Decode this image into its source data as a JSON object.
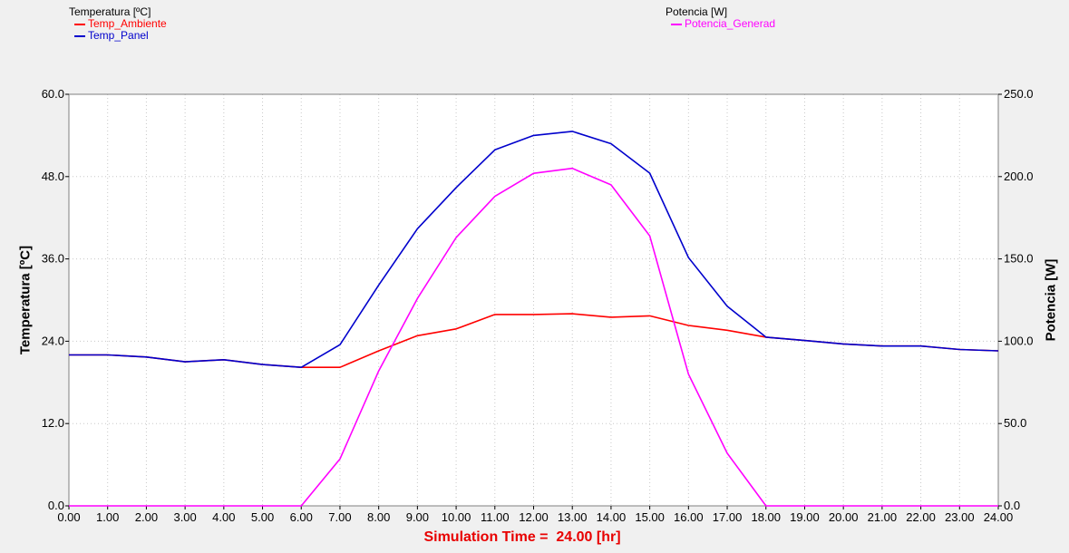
{
  "legends": {
    "left": {
      "title": "Temperatura [ºC]",
      "entries": [
        {
          "label": "Temp_Ambiente",
          "color": "#ff0000"
        },
        {
          "label": "Temp_Panel",
          "color": "#0000cc"
        }
      ]
    },
    "right": {
      "title": "Potencia [W]",
      "entries": [
        {
          "label": "Potencia_Generad",
          "color": "#ff00ff"
        }
      ]
    }
  },
  "chart_data": {
    "type": "line",
    "xlabel": "Simulation Time =  24.00 [hr]",
    "ylabel_left": "Temperatura [ºC]",
    "ylabel_right": "Potencia [W]",
    "xlim": [
      0,
      24
    ],
    "ylim_left": [
      0,
      60
    ],
    "ylim_right": [
      0,
      250
    ],
    "x_ticks": [
      "0.00",
      "1.00",
      "2.00",
      "3.00",
      "4.00",
      "5.00",
      "6.00",
      "7.00",
      "8.00",
      "9.00",
      "10.00",
      "11.00",
      "12.00",
      "13.00",
      "14.00",
      "15.00",
      "16.00",
      "17.00",
      "18.00",
      "19.00",
      "20.00",
      "21.00",
      "22.00",
      "23.00",
      "24.00"
    ],
    "y_ticks_left": [
      "0.0",
      "12.0",
      "24.0",
      "36.0",
      "48.0",
      "60.0"
    ],
    "y_ticks_right": [
      "0.0",
      "50.0",
      "100.0",
      "150.0",
      "200.0",
      "250.0"
    ],
    "grid": true,
    "series": [
      {
        "name": "Temp_Ambiente",
        "axis": "left",
        "color": "#ff0000",
        "x": [
          0,
          1,
          2,
          3,
          4,
          5,
          6,
          7,
          8,
          9,
          10,
          11,
          12,
          13,
          14,
          15,
          16,
          17,
          18,
          19,
          20,
          21,
          22,
          23,
          24
        ],
        "y": [
          22.0,
          22.0,
          21.7,
          21.0,
          21.3,
          20.6,
          20.2,
          20.2,
          22.6,
          24.8,
          25.8,
          27.9,
          27.9,
          28.0,
          27.5,
          27.7,
          26.3,
          25.6,
          24.6,
          24.1,
          23.6,
          23.3,
          23.3,
          22.8,
          22.6
        ]
      },
      {
        "name": "Temp_Panel",
        "axis": "left",
        "color": "#0000cc",
        "x": [
          0,
          1,
          2,
          3,
          4,
          5,
          6,
          7,
          8,
          9,
          10,
          11,
          12,
          13,
          14,
          15,
          16,
          17,
          18,
          19,
          20,
          21,
          22,
          23,
          24
        ],
        "y": [
          22.0,
          22.0,
          21.7,
          21.0,
          21.3,
          20.6,
          20.2,
          23.5,
          32.2,
          40.4,
          46.4,
          51.9,
          54.0,
          54.6,
          52.8,
          48.5,
          36.2,
          29.1,
          24.6,
          24.1,
          23.6,
          23.3,
          23.3,
          22.8,
          22.6
        ]
      },
      {
        "name": "Potencia_Generad",
        "axis": "right",
        "color": "#ff00ff",
        "x": [
          0,
          1,
          2,
          3,
          4,
          5,
          6,
          7,
          8,
          9,
          10,
          11,
          12,
          13,
          14,
          15,
          16,
          17,
          18,
          19,
          20,
          21,
          22,
          23,
          24
        ],
        "y": [
          0,
          0,
          0,
          0,
          0,
          0,
          0,
          28.5,
          82,
          126,
          163,
          188,
          202,
          205,
          195,
          164,
          80,
          32,
          0,
          0,
          0,
          0,
          0,
          0,
          0
        ]
      }
    ]
  }
}
